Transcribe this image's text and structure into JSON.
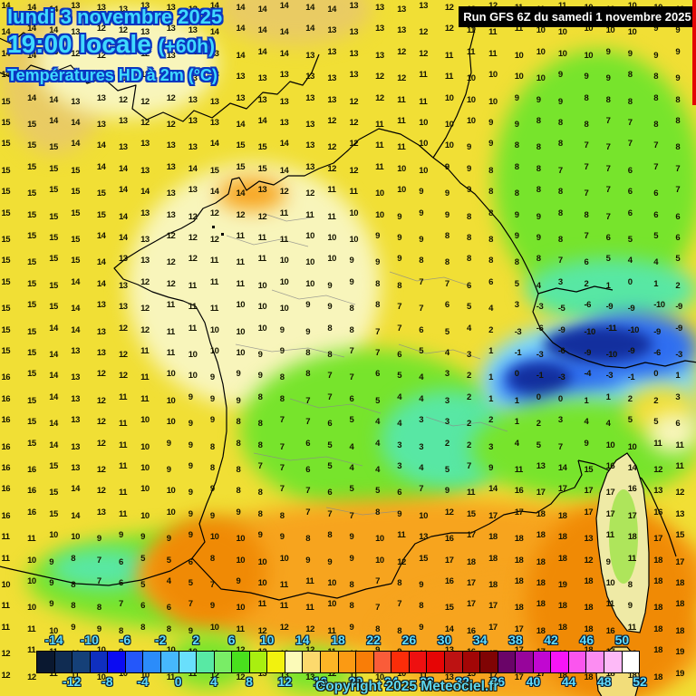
{
  "header": {
    "date": "lundi 3 novembre 2025",
    "time": "19:00 locale",
    "offset": "(+60h)",
    "parameter": "Températures HD à 2m (°C)",
    "text_color": "#3fd9ff",
    "outline_color": "#0a36c0"
  },
  "run_info": {
    "text": "Run GFS 6Z du samedi 1 novembre 2025",
    "bg_color": "#000000",
    "text_color": "#ffffff"
  },
  "copyright": {
    "text": "Copyright 2025 Meteociel.fr"
  },
  "legend": {
    "unit": "°C",
    "min": -16,
    "max": 52,
    "step": 2,
    "labels_above": [
      "-14",
      "-10",
      "-6",
      "-2",
      "2",
      "6",
      "10",
      "14",
      "18",
      "22",
      "26",
      "30",
      "34",
      "38",
      "42",
      "46",
      "50"
    ],
    "labels_below": [
      "-12",
      "-8",
      "-4",
      "0",
      "4",
      "8",
      "12",
      "16",
      "20",
      "24",
      "28",
      "32",
      "36",
      "40",
      "44",
      "48",
      "52"
    ],
    "cell_colors": [
      "#0a1830",
      "#102c52",
      "#154078",
      "#0f2fbf",
      "#0b0bf2",
      "#2457fa",
      "#2b8cfa",
      "#46b8fc",
      "#69dffc",
      "#58e9a4",
      "#79ed66",
      "#49e01d",
      "#a9ef10",
      "#f2f20e",
      "#fbfab8",
      "#fcd96d",
      "#fcb526",
      "#fb9a13",
      "#f97d07",
      "#fa5c39",
      "#fb2d09",
      "#ee1010",
      "#e60505",
      "#bd1212",
      "#a30606",
      "#800404",
      "#6a0468",
      "#97059b",
      "#c107d1",
      "#f714f7",
      "#fb55ee",
      "#fc8df2",
      "#fdbaf7",
      "#ffffff"
    ]
  },
  "map": {
    "grid_cols": 30,
    "field_colors": {
      "yellow": "#f1df35",
      "pale_yellow": "#f8f5bb",
      "tan": "#e9cb63",
      "green": "#77e42c",
      "aqua": "#58e7a4",
      "cyan": "#7edbff",
      "blue": "#2f6ef0",
      "navy": "#132f9e",
      "orange": "#f7a41e",
      "deep_orange": "#f08a05"
    },
    "temp_rows": [
      "14 14 14 13 13 13 13 13 13 14 14 14 14 14 14 13 13 13 13 12 12 12 11 11 11 10 10 10 10 10",
      "14 14 14 13 12 12 13 13 13 14 14 14 14 14 13 13 13 13 12 12 11 11 11 10 10 10 10 10 9 9",
      "14 14 13 12 12 12 12 13 13 13 14 14 14 13 13 13 13 12 12 11 11 11 10 10 10 10 9 9 9 9",
      "14 14 13 13 12 11 11 12 13 13 13 13 13 13 13 13 12 12 11 11 10 10 10 10 9 9 9 8 8 9",
      "15 14 14 13 13 12 12 12 13 13 13 13 13 13 13 12 12 11 11 10 10 10 9 9 9 8 8 8 8 8",
      "15 15 14 14 13 13 12 12 13 13 14 14 13 13 12 12 11 11 10 10 10 9 9 8 8 8 7 7 8 8",
      "15 15 15 14 14 13 13 13 13 14 15 15 14 13 12 12 11 11 10 10 9 9 8 8 8 7 7 7 7 8",
      "15 15 15 15 14 14 13 13 14 15 15 15 14 13 12 12 11 10 10 9 9 8 8 8 7 7 7 6 7 7",
      "15 15 15 15 15 14 14 13 13 14 14 13 12 12 11 11 10 10 9 9 9 8 8 8 8 7 7 6 6 7",
      "15 15 15 15 15 14 13 13 12 12 12 12 11 11 11 10 10 9 9 9 8 8 9 9 8 8 7 6 6 6",
      "15 15 15 15 14 14 13 12 12 12 11 11 11 10 10 10 9 9 9 8 8 8 9 9 8 7 6 5 5 6",
      "15 15 15 15 14 13 13 12 12 11 11 11 10 10 10 9 9 9 8 8 8 8 8 8 7 6 5 4 4 5",
      "15 15 15 14 14 13 12 12 11 11 11 10 10 10 9 9 8 8 7 7 6 6 5 4 3 2 1 0 1 2",
      "15 15 15 14 13 13 12 11 11 11 10 10 10 9 9 8 8 7 7 6 5 4 3 -3 -5 -6 -9 -9 -10 -9",
      "15 15 14 14 13 12 12 11 11 10 10 10 9 9 8 8 7 7 6 5 4 2 -3 -6 -9 -10 -11 -10 -9 -9",
      "15 15 14 13 13 12 11 11 10 10 10 9 9 8 8 7 7 6 5 4 3 1 -1 -3 -6 -9 -10 -9 -6 -3",
      "16 15 14 13 12 12 11 10 10 9 9 9 8 8 7 7 6 5 4 3 2 1 0 -1 -3 -4 -3 -1 0 1",
      "16 15 14 13 12 11 11 10 9 9 9 8 8 7 7 6 5 4 4 3 2 1 1 0 0 1 1 2 2 3",
      "16 15 14 13 12 11 10 10 9 9 8 8 7 7 6 5 4 4 3 3 2 2 1 2 3 4 4 5 5 6",
      "16 15 14 13 12 11 10 9 9 8 8 8 7 6 5 4 4 3 3 2 2 3 4 5 7 9 10 10 11 11",
      "16 16 15 13 12 11 10 9 9 8 8 7 7 6 5 4 4 3 4 5 7 9 11 13 14 15 16 14 12 11",
      "16 16 15 14 12 11 10 10 9 9 8 8 7 7 6 5 5 6 7 9 11 14 16 17 17 17 17 16 13 12",
      "16 16 15 14 13 11 10 10 9 9 9 8 8 7 7 7 8 9 10 12 15 17 17 18 18 17 17 17 16 13",
      "11 11 10 10 9 9 9 9 9 10 10 9 9 8 8 9 10 11 13 16 17 18 18 18 18 13 11 18 17 15",
      "11 10 9 8 7 6 5 5 6 8 10 10 10 9 9 9 10 12 15 17 18 18 18 18 18 12 9 11 18 17",
      "10 10 9 8 7 6 5 4 5 7 9 10 11 11 10 8 7 8 9 16 17 18 18 18 19 18 10 8 18 18",
      "11 10 9 8 8 7 6 6 7 9 10 11 11 11 10 8 7 7 8 15 17 17 18 18 18 18 11 9 18 18",
      "11 11 10 9 9 8 8 8 9 10 11 12 12 12 11 9 8 8 9 14 16 17 17 18 18 18 16 11 18 18",
      "12 11 11 10 10 9 9 10 10 11 12 12 13 12 11 10 9 9 10 13 16 17 17 17 18 18 17 18 18 19",
      "12 12 11 11 10 10 10 11 11 12 12 13 13 13 12 11 10 10 11 13 15 17 17 17 18 18 18 18 18 19"
    ]
  }
}
